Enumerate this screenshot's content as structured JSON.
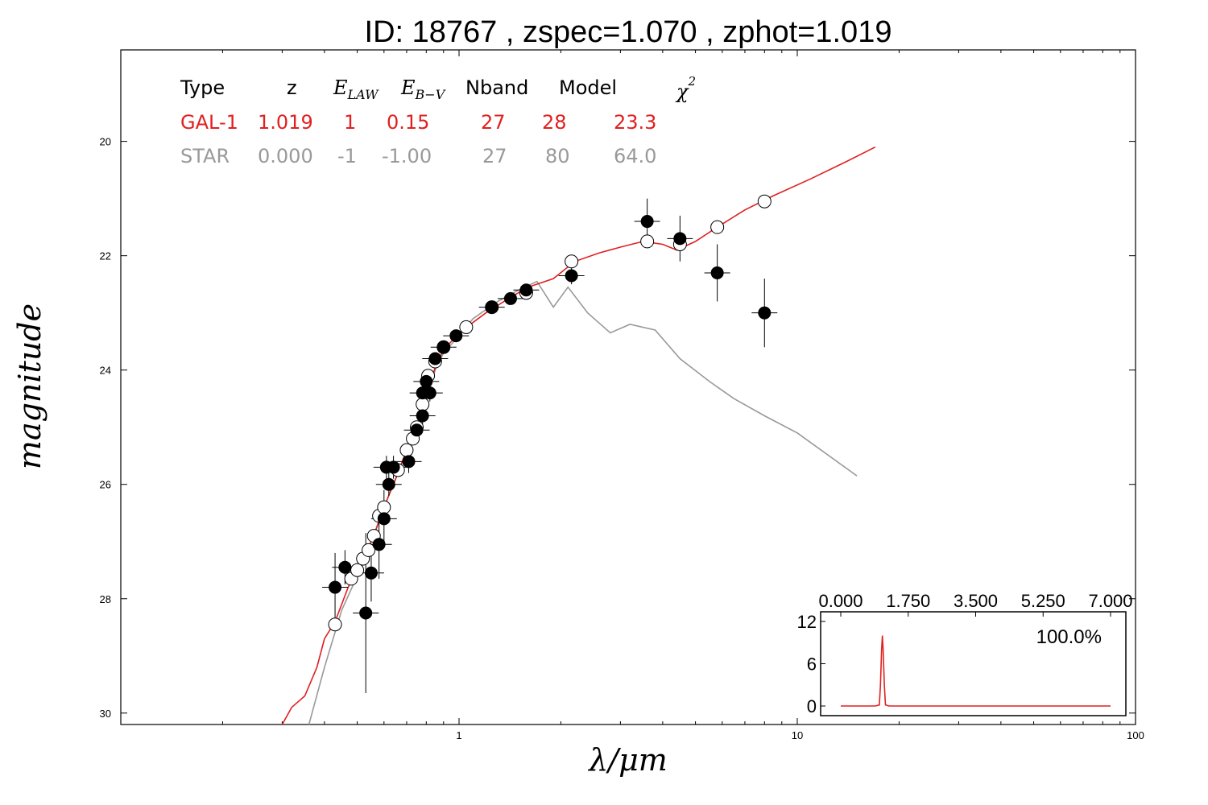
{
  "title": "ID:  18767 , zspec=1.070 , zphot=1.019",
  "axis_labels": {
    "x": "λ/μm",
    "y": "magnitude"
  },
  "colors": {
    "galaxy": "#e02020",
    "star": "#999999",
    "axes": "#000000"
  },
  "fit_table": {
    "headers": {
      "type": "Type",
      "z": "z",
      "elaw_main": "E",
      "elaw_sub": "LAW",
      "ebv_main": "E",
      "ebv_sub": "B−V",
      "nband": "Nband",
      "model": "Model",
      "chi2_main": "χ",
      "chi2_sup": "2"
    },
    "rows": [
      {
        "type": "GAL-1",
        "z": "1.019",
        "elaw": "1",
        "ebv": "0.15",
        "nband": "27",
        "model": "28",
        "chi2": "23.3"
      },
      {
        "type": "STAR",
        "z": "0.000",
        "elaw": "-1",
        "ebv": "-1.00",
        "nband": "27",
        "model": "80",
        "chi2": "64.0"
      }
    ]
  },
  "inset": {
    "x_ticks": [
      "0.000",
      "1.750",
      "3.500",
      "5.250",
      "7.000"
    ],
    "y_ticks": [
      "0",
      "6",
      "12"
    ],
    "percent": "100.0%"
  },
  "chart_data": {
    "type": "scatter",
    "x_scale": "log",
    "xlim": [
      0.1,
      100
    ],
    "ylim": [
      30.2,
      18.4
    ],
    "x_ticks": [
      "1",
      "10",
      "100"
    ],
    "y_ticks": [
      "20",
      "22",
      "24",
      "26",
      "28",
      "30"
    ],
    "series": [
      {
        "name": "observed (filled)",
        "points": [
          [
            0.43,
            27.8,
            0.6
          ],
          [
            0.46,
            27.45,
            0.3
          ],
          [
            0.53,
            28.25,
            1.4
          ],
          [
            0.55,
            27.55,
            0.5
          ],
          [
            0.58,
            27.05,
            0.6
          ],
          [
            0.6,
            26.6,
            0.5
          ],
          [
            0.61,
            25.7,
            0.2
          ],
          [
            0.62,
            26.0,
            0.2
          ],
          [
            0.64,
            25.7,
            0.2
          ],
          [
            0.71,
            25.6,
            0.2
          ],
          [
            0.75,
            25.05,
            0.15
          ],
          [
            0.78,
            24.8,
            0.15
          ],
          [
            0.78,
            24.4,
            0.15
          ],
          [
            0.8,
            24.2,
            0.15
          ],
          [
            0.82,
            24.4,
            0.15
          ],
          [
            0.85,
            23.8,
            0.1
          ],
          [
            0.9,
            23.6,
            0.1
          ],
          [
            0.98,
            23.4,
            0.1
          ],
          [
            1.25,
            22.9,
            0.1
          ],
          [
            1.42,
            22.75,
            0.1
          ],
          [
            1.58,
            22.6,
            0.1
          ],
          [
            2.15,
            22.35,
            0.15
          ],
          [
            3.6,
            21.4,
            0.4
          ],
          [
            4.5,
            21.7,
            0.4
          ],
          [
            5.8,
            22.3,
            0.5
          ],
          [
            8.0,
            23.0,
            0.6
          ]
        ]
      },
      {
        "name": "model (open)",
        "points": [
          [
            0.43,
            28.45
          ],
          [
            0.48,
            27.65
          ],
          [
            0.5,
            27.5
          ],
          [
            0.52,
            27.3
          ],
          [
            0.54,
            27.15
          ],
          [
            0.56,
            26.9
          ],
          [
            0.58,
            26.55
          ],
          [
            0.6,
            26.4
          ],
          [
            0.66,
            25.75
          ],
          [
            0.7,
            25.4
          ],
          [
            0.73,
            25.2
          ],
          [
            0.75,
            25.0
          ],
          [
            0.78,
            24.6
          ],
          [
            0.81,
            24.1
          ],
          [
            0.85,
            23.85
          ],
          [
            0.9,
            23.6
          ],
          [
            1.05,
            23.25
          ],
          [
            1.25,
            22.9
          ],
          [
            1.58,
            22.65
          ],
          [
            2.15,
            22.1
          ],
          [
            3.6,
            21.75
          ],
          [
            4.5,
            21.8
          ],
          [
            5.8,
            21.5
          ],
          [
            8.0,
            21.05
          ]
        ]
      },
      {
        "name": "GAL-1",
        "values": [
          [
            0.3,
            30.2
          ],
          [
            0.32,
            29.9
          ],
          [
            0.35,
            29.7
          ],
          [
            0.38,
            29.2
          ],
          [
            0.4,
            28.7
          ],
          [
            0.43,
            28.4
          ],
          [
            0.47,
            27.8
          ],
          [
            0.52,
            27.3
          ],
          [
            0.56,
            26.9
          ],
          [
            0.6,
            26.4
          ],
          [
            0.65,
            25.9
          ],
          [
            0.7,
            25.4
          ],
          [
            0.75,
            25.0
          ],
          [
            0.8,
            24.5
          ],
          [
            0.85,
            23.95
          ],
          [
            0.9,
            23.65
          ],
          [
            1.0,
            23.35
          ],
          [
            1.2,
            23.0
          ],
          [
            1.4,
            22.75
          ],
          [
            1.6,
            22.55
          ],
          [
            1.9,
            22.4
          ],
          [
            2.2,
            22.1
          ],
          [
            2.6,
            21.95
          ],
          [
            3.0,
            21.85
          ],
          [
            3.5,
            21.75
          ],
          [
            4.0,
            21.8
          ],
          [
            4.4,
            21.9
          ],
          [
            5.0,
            21.75
          ],
          [
            5.8,
            21.5
          ],
          [
            7.0,
            21.2
          ],
          [
            8.5,
            20.95
          ],
          [
            11.0,
            20.65
          ],
          [
            14.0,
            20.35
          ],
          [
            17.0,
            20.1
          ]
        ]
      },
      {
        "name": "STAR",
        "values": [
          [
            0.36,
            30.2
          ],
          [
            0.4,
            29.2
          ],
          [
            0.45,
            28.2
          ],
          [
            0.5,
            27.6
          ],
          [
            0.55,
            27.0
          ],
          [
            0.6,
            26.4
          ],
          [
            0.65,
            25.9
          ],
          [
            0.7,
            25.4
          ],
          [
            0.75,
            25.0
          ],
          [
            0.8,
            24.5
          ],
          [
            0.85,
            24.0
          ],
          [
            0.9,
            23.7
          ],
          [
            1.0,
            23.4
          ],
          [
            1.1,
            23.1
          ],
          [
            1.3,
            22.8
          ],
          [
            1.5,
            22.6
          ],
          [
            1.7,
            22.45
          ],
          [
            1.9,
            22.9
          ],
          [
            2.1,
            22.55
          ],
          [
            2.4,
            23.0
          ],
          [
            2.8,
            23.35
          ],
          [
            3.2,
            23.2
          ],
          [
            3.8,
            23.3
          ],
          [
            4.5,
            23.8
          ],
          [
            5.5,
            24.2
          ],
          [
            6.5,
            24.5
          ],
          [
            8.0,
            24.8
          ],
          [
            10.0,
            25.1
          ],
          [
            15.0,
            25.85
          ]
        ]
      }
    ]
  },
  "inset_chart_data": {
    "type": "line",
    "xlim": [
      0,
      7
    ],
    "ylim": [
      0,
      12
    ],
    "values": [
      [
        0.0,
        0
      ],
      [
        0.9,
        0
      ],
      [
        1.0,
        0.15
      ],
      [
        1.03,
        3
      ],
      [
        1.06,
        8
      ],
      [
        1.08,
        10
      ],
      [
        1.1,
        8
      ],
      [
        1.13,
        3
      ],
      [
        1.16,
        0.15
      ],
      [
        1.25,
        0
      ],
      [
        7.0,
        0
      ]
    ]
  }
}
